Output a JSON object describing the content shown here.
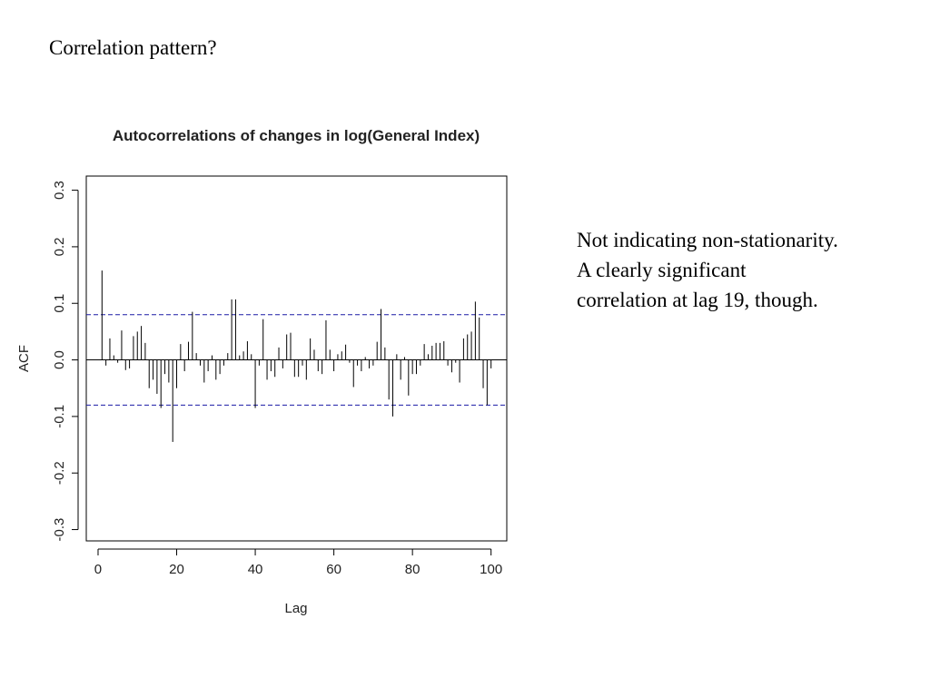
{
  "slide": {
    "heading": "Correlation pattern?",
    "note_lines": [
      "Not indicating non-stationarity.",
      "A clearly significant",
      "correlation at lag 19, though."
    ]
  },
  "chart_data": {
    "type": "bar",
    "title": "Autocorrelations of changes in log(General Index)",
    "xlabel": "Lag",
    "ylabel": "ACF",
    "xlim": [
      -3,
      104
    ],
    "ylim": [
      -0.32,
      0.325
    ],
    "x_ticks": [
      0,
      20,
      40,
      60,
      80,
      100
    ],
    "x_tick_labels": [
      "0",
      "20",
      "40",
      "60",
      "80",
      "100"
    ],
    "y_ticks": [
      -0.3,
      -0.2,
      -0.1,
      0.0,
      0.1,
      0.2,
      0.3
    ],
    "y_tick_labels": [
      "-0.3",
      "-0.2",
      "-0.1",
      "0.0",
      "0.1",
      "0.2",
      "0.3"
    ],
    "grid": false,
    "confidence_band": 0.08,
    "confidence_band_color": "#1a1aa6",
    "bar_color": "#000000",
    "lags": [
      1,
      2,
      3,
      4,
      5,
      6,
      7,
      8,
      9,
      10,
      11,
      12,
      13,
      14,
      15,
      16,
      17,
      18,
      19,
      20,
      21,
      22,
      23,
      24,
      25,
      26,
      27,
      28,
      29,
      30,
      31,
      32,
      33,
      34,
      35,
      36,
      37,
      38,
      39,
      40,
      41,
      42,
      43,
      44,
      45,
      46,
      47,
      48,
      49,
      50,
      51,
      52,
      53,
      54,
      55,
      56,
      57,
      58,
      59,
      60,
      61,
      62,
      63,
      64,
      65,
      66,
      67,
      68,
      69,
      70,
      71,
      72,
      73,
      74,
      75,
      76,
      77,
      78,
      79,
      80,
      81,
      82,
      83,
      84,
      85,
      86,
      87,
      88,
      89,
      90,
      91,
      92,
      93,
      94,
      95,
      96,
      97,
      98,
      99,
      100
    ],
    "values": [
      0.158,
      -0.01,
      0.038,
      0.008,
      -0.005,
      0.052,
      -0.018,
      -0.015,
      0.042,
      0.05,
      0.06,
      0.03,
      -0.05,
      -0.035,
      -0.06,
      -0.085,
      -0.025,
      -0.04,
      -0.145,
      -0.05,
      0.028,
      -0.02,
      0.032,
      0.085,
      0.012,
      -0.01,
      -0.04,
      -0.02,
      0.008,
      -0.035,
      -0.025,
      -0.01,
      0.012,
      0.107,
      0.107,
      0.008,
      0.015,
      0.033,
      0.01,
      -0.085,
      -0.01,
      0.072,
      -0.035,
      -0.02,
      -0.03,
      0.022,
      -0.015,
      0.045,
      0.048,
      -0.03,
      -0.03,
      -0.01,
      -0.035,
      0.038,
      0.018,
      -0.02,
      -0.025,
      0.07,
      0.018,
      -0.02,
      0.01,
      0.015,
      0.027,
      -0.005,
      -0.048,
      -0.01,
      -0.02,
      0.005,
      -0.015,
      -0.01,
      0.032,
      0.09,
      0.022,
      -0.07,
      -0.1,
      0.01,
      -0.035,
      0.005,
      -0.063,
      -0.025,
      -0.025,
      -0.01,
      0.028,
      0.01,
      0.025,
      0.03,
      0.03,
      0.033,
      -0.01,
      -0.022,
      -0.005,
      -0.04,
      0.038,
      0.045,
      0.05,
      0.103,
      0.075,
      -0.05,
      -0.08,
      -0.015
    ]
  }
}
